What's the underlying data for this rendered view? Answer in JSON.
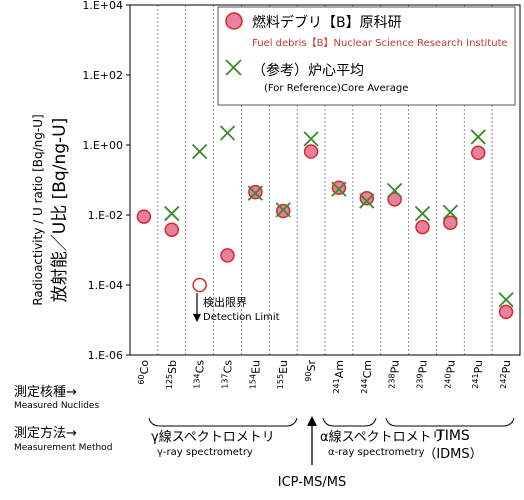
{
  "chart_data": {
    "type": "scatter",
    "yscale": "log",
    "ylim": [
      1e-06,
      10000.0
    ],
    "y_ticks": [
      {
        "value": 10000.0,
        "label": "1.E+04"
      },
      {
        "value": 100.0,
        "label": "1.E+02"
      },
      {
        "value": 1.0,
        "label": "1.E+00"
      },
      {
        "value": 0.01,
        "label": "1.E-02"
      },
      {
        "value": 0.0001,
        "label": "1.E-04"
      },
      {
        "value": 1e-06,
        "label": "1.E-06"
      }
    ],
    "ylabel_en": "Radioactivity / U ratio [Bq/ng-U]",
    "ylabel_ja": "放射能／U比 [Bq/ng-U]",
    "categories": [
      {
        "mass": "60",
        "element": "Co"
      },
      {
        "mass": "125",
        "element": "Sb"
      },
      {
        "mass": "134",
        "element": "Cs"
      },
      {
        "mass": "137",
        "element": "Cs"
      },
      {
        "mass": "154",
        "element": "Eu"
      },
      {
        "mass": "155",
        "element": "Eu"
      },
      {
        "mass": "90",
        "element": "Sr"
      },
      {
        "mass": "241",
        "element": "Am"
      },
      {
        "mass": "244",
        "element": "Cm"
      },
      {
        "mass": "238",
        "element": "Pu"
      },
      {
        "mass": "239",
        "element": "Pu"
      },
      {
        "mass": "240",
        "element": "Pu"
      },
      {
        "mass": "241",
        "element": "Pu"
      },
      {
        "mass": "242",
        "element": "Pu"
      }
    ],
    "series": [
      {
        "name_ja": "燃料デブリ【B】原科研",
        "name_en": "Fuel debris【B】Nuclear Science Research Institute",
        "marker": "circle",
        "color": "#e8809f",
        "edge_color": "#d42a2a",
        "values": [
          0.009,
          0.0038,
          0.0001,
          0.0007,
          0.045,
          0.013,
          0.65,
          0.06,
          0.03,
          0.028,
          0.0045,
          0.006,
          0.6,
          1.7e-05
        ],
        "below_detection_limit": [
          false,
          false,
          true,
          false,
          false,
          false,
          false,
          false,
          false,
          false,
          false,
          false,
          false,
          false
        ]
      },
      {
        "name_ja": "（参考）炉心平均",
        "name_en": "(For Reference)Core Average",
        "marker": "x",
        "color": "#3a8a2e",
        "values": [
          null,
          0.011,
          0.65,
          2.2,
          0.042,
          0.014,
          1.5,
          0.055,
          0.025,
          0.05,
          0.011,
          0.012,
          1.7,
          3.8e-05
        ]
      }
    ],
    "legend_position": "top-right",
    "annotations": {
      "detection_limit_ja": "検出限界",
      "detection_limit_en": "Detection Limit",
      "nuclides_ja": "測定核種→",
      "nuclides_en": "Measured Nuclides",
      "method_ja": "測定方法→",
      "method_en": "Measurement Method",
      "gamma_ja": "γ線スペクトロメトリ",
      "gamma_en": "γ-ray spectrometry",
      "alpha_ja": "α線スペクトロメトリ",
      "alpha_en": "α-ray spectrometry",
      "tims": "TIMS",
      "idms": "（IDMS）",
      "icp": "ICP-MS/MS"
    }
  }
}
